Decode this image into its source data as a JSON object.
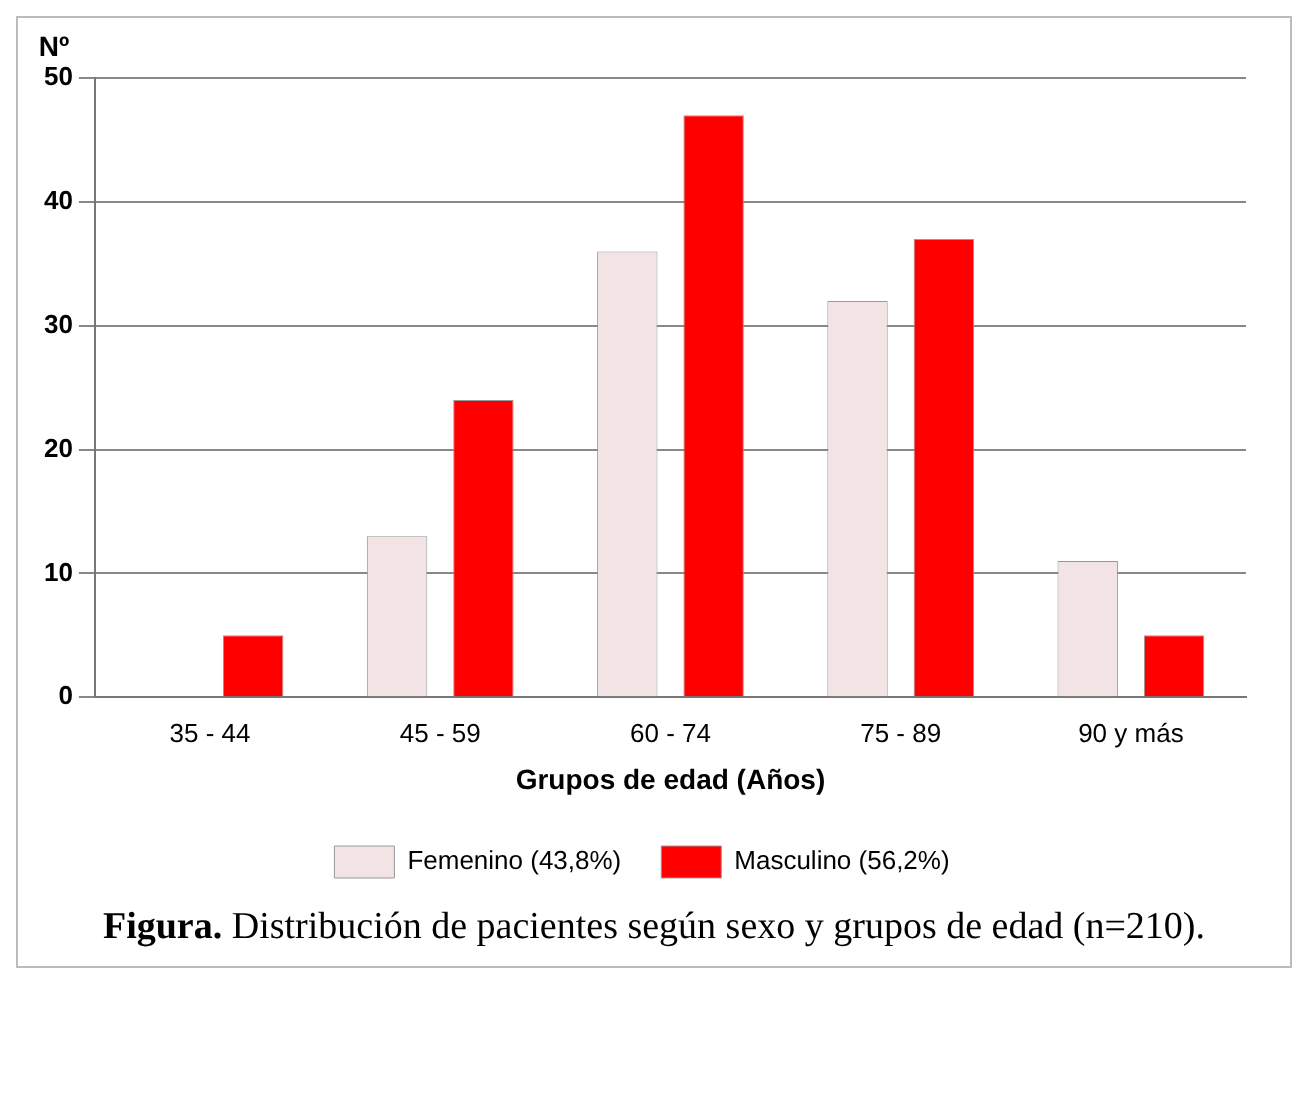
{
  "chart_data": {
    "type": "bar",
    "title": "Figura. Distribución de pacientes según sexo y grupos de edad (n=210).",
    "xlabel": "Grupos de edad (Años)",
    "ylabel": "Nº",
    "categories": [
      "35 - 44",
      "45 - 59",
      "60 - 74",
      "75 - 89",
      "90 y más"
    ],
    "series": [
      {
        "name": "Femenino (43,8%)",
        "color": "#f2e4e4",
        "values": [
          0,
          13,
          36,
          32,
          11
        ]
      },
      {
        "name": "Masculino (56,2%)",
        "color": "#ff0000",
        "values": [
          5,
          24,
          47,
          37,
          5
        ]
      }
    ],
    "ylim": [
      0,
      50
    ],
    "yticks": [
      0,
      10,
      20,
      30,
      40,
      50
    ],
    "grid": "y",
    "legend": "bottom"
  }
}
